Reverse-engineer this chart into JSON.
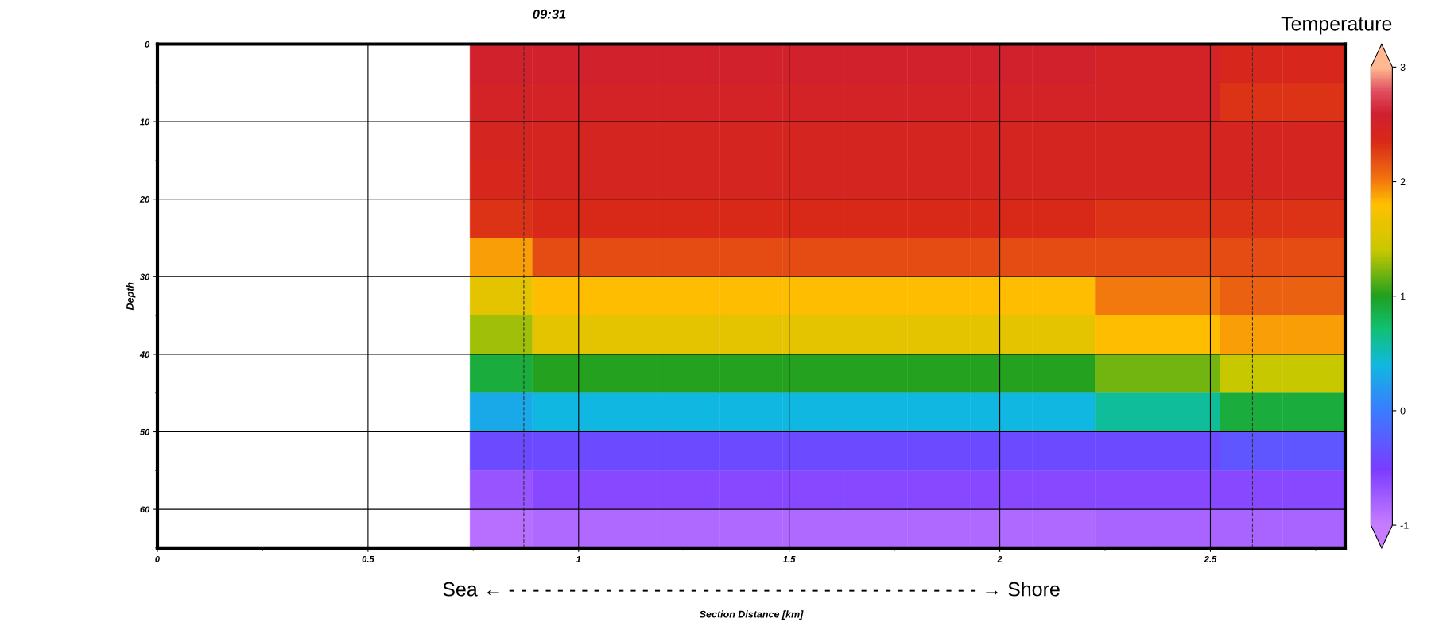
{
  "chart_data": {
    "type": "heatmap",
    "title": "09:31",
    "xlabel": "Section Distance [km]",
    "ylabel": "Depth",
    "clabel": "Temperature",
    "annotations": [
      "Sea ← - - - - - - - - - - - - - - - - - - - - - - - - - - - - - - - - - - - - - - - → Shore"
    ],
    "xlim": [
      0,
      2.82
    ],
    "xticks": [
      0,
      0.5,
      1,
      1.5,
      2,
      2.5
    ],
    "ylim": [
      65,
      0
    ],
    "yticks": [
      0,
      10,
      20,
      30,
      40,
      50,
      60
    ],
    "clim": [
      -1,
      3
    ],
    "cticks": [
      -1,
      0,
      1,
      2,
      3
    ],
    "grid": true,
    "ref_lines": [
      {
        "axis": "x",
        "value": 0.87,
        "color": "#333333",
        "line_style": "dashed"
      },
      {
        "axis": "x",
        "value": 2.6,
        "color": "#333333",
        "line_style": "dashed"
      }
    ],
    "cells": [
      [
        null,
        null,
        null,
        null,
        null,
        2.55,
        2.55,
        2.55,
        2.55,
        2.55,
        2.55,
        2.55,
        2.55,
        2.55,
        2.55,
        2.5,
        2.5,
        2.4,
        2.4
      ],
      [
        null,
        null,
        null,
        null,
        null,
        2.5,
        2.5,
        2.5,
        2.5,
        2.5,
        2.5,
        2.5,
        2.5,
        2.5,
        2.5,
        2.5,
        2.5,
        2.3,
        2.3
      ],
      [
        null,
        null,
        null,
        null,
        null,
        2.45,
        2.45,
        2.45,
        2.45,
        2.45,
        2.45,
        2.45,
        2.45,
        2.45,
        2.45,
        2.45,
        2.45,
        2.45,
        2.45
      ],
      [
        null,
        null,
        null,
        null,
        null,
        2.4,
        2.45,
        2.45,
        2.45,
        2.45,
        2.45,
        2.45,
        2.45,
        2.45,
        2.45,
        2.45,
        2.45,
        2.45,
        2.45
      ],
      [
        null,
        null,
        null,
        null,
        null,
        2.3,
        2.35,
        2.35,
        2.35,
        2.35,
        2.35,
        2.35,
        2.35,
        2.35,
        2.35,
        2.3,
        2.3,
        2.3,
        2.3
      ],
      [
        null,
        null,
        null,
        null,
        null,
        1.9,
        2.2,
        2.2,
        2.2,
        2.2,
        2.2,
        2.2,
        2.2,
        2.2,
        2.2,
        2.2,
        2.2,
        2.2,
        2.2
      ],
      [
        null,
        null,
        null,
        null,
        null,
        1.6,
        1.8,
        1.8,
        1.8,
        1.8,
        1.8,
        1.8,
        1.8,
        1.8,
        1.8,
        2.0,
        2.0,
        2.1,
        2.1
      ],
      [
        null,
        null,
        null,
        null,
        null,
        1.3,
        1.6,
        1.6,
        1.6,
        1.6,
        1.6,
        1.6,
        1.6,
        1.6,
        1.6,
        1.8,
        1.8,
        1.9,
        1.9
      ],
      [
        null,
        null,
        null,
        null,
        null,
        0.9,
        1.0,
        1.0,
        1.0,
        1.0,
        1.0,
        1.0,
        1.0,
        1.0,
        1.0,
        1.2,
        1.2,
        1.4,
        1.4
      ],
      [
        null,
        null,
        null,
        null,
        null,
        0.3,
        0.4,
        0.4,
        0.4,
        0.4,
        0.4,
        0.4,
        0.4,
        0.4,
        0.4,
        0.6,
        0.6,
        0.9,
        0.9
      ],
      [
        null,
        null,
        null,
        null,
        null,
        -0.4,
        -0.4,
        -0.4,
        -0.4,
        -0.4,
        -0.4,
        -0.4,
        -0.4,
        -0.4,
        -0.4,
        -0.4,
        -0.4,
        -0.3,
        -0.3
      ],
      [
        null,
        null,
        null,
        null,
        null,
        -0.7,
        -0.6,
        -0.6,
        -0.6,
        -0.6,
        -0.6,
        -0.6,
        -0.6,
        -0.6,
        -0.6,
        -0.6,
        -0.6,
        -0.6,
        -0.6
      ],
      [
        null,
        null,
        null,
        null,
        null,
        -0.9,
        -0.85,
        -0.85,
        -0.85,
        -0.85,
        -0.85,
        -0.85,
        -0.85,
        -0.85,
        -0.85,
        -0.8,
        -0.8,
        -0.8,
        -0.8
      ]
    ]
  }
}
